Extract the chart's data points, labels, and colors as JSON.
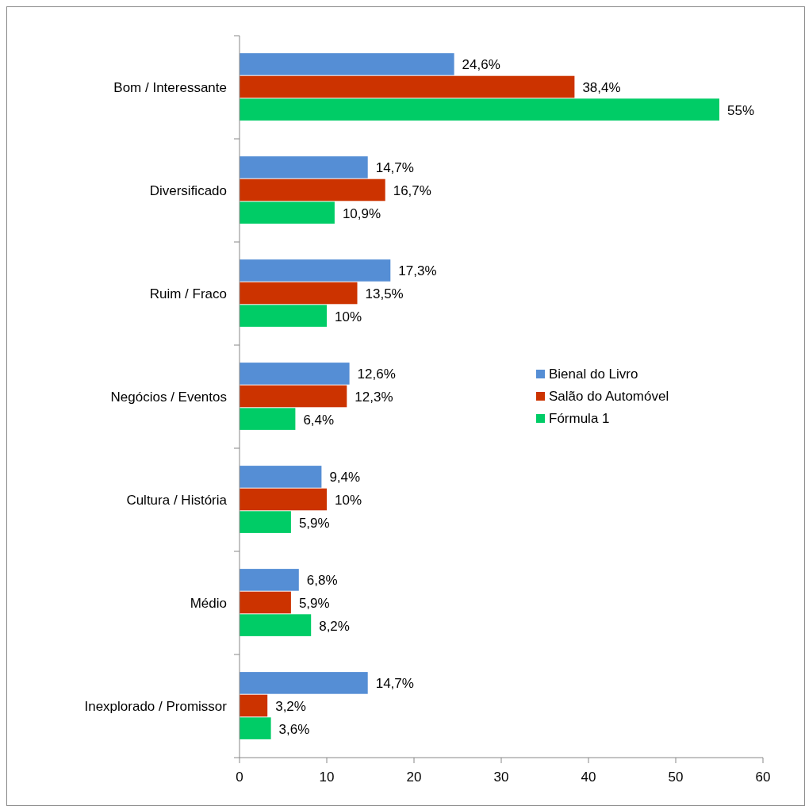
{
  "chart_data": {
    "type": "bar",
    "orientation": "horizontal",
    "categories": [
      "Bom / Interessante",
      "Diversificado",
      "Ruim / Fraco",
      "Negócios / Eventos",
      "Cultura / História",
      "Médio",
      "Inexplorado / Promissor"
    ],
    "series": [
      {
        "name": "Bienal do Livro",
        "color": "#558ed5",
        "values": [
          24.6,
          14.7,
          17.3,
          12.6,
          9.4,
          6.8,
          14.7
        ],
        "value_labels": [
          "24,6%",
          "14,7%",
          "17,3%",
          "12,6%",
          "9,4%",
          "6,8%",
          "14,7%"
        ]
      },
      {
        "name": "Salão do Automóvel",
        "color": "#cc3300",
        "values": [
          38.4,
          16.7,
          13.5,
          12.3,
          10,
          5.9,
          3.2
        ],
        "value_labels": [
          "38,4%",
          "16,7%",
          "13,5%",
          "12,3%",
          "10%",
          "5,9%",
          "3,2%"
        ]
      },
      {
        "name": "Fórmula 1",
        "color": "#00cc66",
        "values": [
          55,
          10.9,
          10,
          6.4,
          5.9,
          8.2,
          3.6
        ],
        "value_labels": [
          "55%",
          "10,9%",
          "10%",
          "6,4%",
          "5,9%",
          "8,2%",
          "3,6%"
        ]
      }
    ],
    "xlim": [
      0,
      60
    ],
    "xticks": [
      0,
      10,
      20,
      30,
      40,
      50,
      60
    ],
    "grid": false,
    "legend": "right"
  }
}
